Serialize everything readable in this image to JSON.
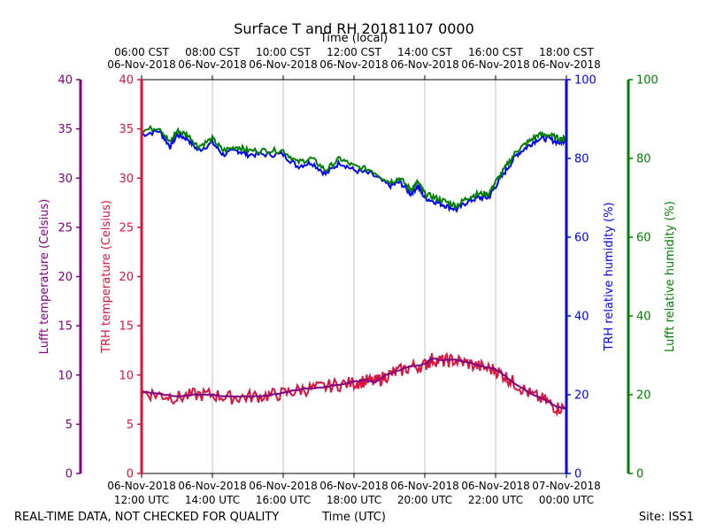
{
  "chart_data": {
    "type": "line",
    "title": "Surface T and RH 20181107 0000",
    "xlabel": "Time (UTC)",
    "xlabel_top": "Time (local)",
    "xlim_hours_utc": [
      12,
      24
    ],
    "x_ticks_bottom": [
      {
        "hour": 12,
        "date": "06-Nov-2018",
        "time": "12:00 UTC"
      },
      {
        "hour": 14,
        "date": "06-Nov-2018",
        "time": "14:00 UTC"
      },
      {
        "hour": 16,
        "date": "06-Nov-2018",
        "time": "16:00 UTC"
      },
      {
        "hour": 18,
        "date": "06-Nov-2018",
        "time": "18:00 UTC"
      },
      {
        "hour": 20,
        "date": "06-Nov-2018",
        "time": "20:00 UTC"
      },
      {
        "hour": 22,
        "date": "06-Nov-2018",
        "time": "22:00 UTC"
      },
      {
        "hour": 24,
        "date": "07-Nov-2018",
        "time": "00:00 UTC"
      }
    ],
    "x_ticks_top": [
      {
        "hour": 12,
        "time": "06:00 CST",
        "date": "06-Nov-2018"
      },
      {
        "hour": 14,
        "time": "08:00 CST",
        "date": "06-Nov-2018"
      },
      {
        "hour": 16,
        "time": "10:00 CST",
        "date": "06-Nov-2018"
      },
      {
        "hour": 18,
        "time": "12:00 CST",
        "date": "06-Nov-2018"
      },
      {
        "hour": 20,
        "time": "14:00 CST",
        "date": "06-Nov-2018"
      },
      {
        "hour": 22,
        "time": "16:00 CST",
        "date": "06-Nov-2018"
      },
      {
        "hour": 24,
        "time": "18:00 CST",
        "date": "06-Nov-2018"
      }
    ],
    "axes": {
      "lufft_temp": {
        "label": "Lufft temperature (Celsius)",
        "ylim": [
          0,
          40
        ],
        "ticks": [
          "0",
          "5",
          "10",
          "15",
          "20",
          "25",
          "30",
          "35",
          "40"
        ],
        "color": "#800080"
      },
      "trh_temp": {
        "label": "TRH temperature (Celsius)",
        "ylim": [
          0,
          40
        ],
        "ticks": [
          "0",
          "5",
          "10",
          "15",
          "20",
          "25",
          "30",
          "35",
          "40"
        ],
        "color": "#dc143c"
      },
      "trh_rh": {
        "label": "TRH relative humidity (%)",
        "ylim": [
          0,
          100
        ],
        "ticks": [
          "0",
          "20",
          "40",
          "60",
          "80",
          "100"
        ],
        "color": "#0000ff"
      },
      "lufft_rh": {
        "label": "Lufft relative humidity (%)",
        "ylim": [
          0,
          100
        ],
        "ticks": [
          "0",
          "20",
          "40",
          "60",
          "80",
          "100"
        ],
        "color": "#008000"
      }
    },
    "grid": "vertical",
    "series": [
      {
        "name": "TRH relative humidity",
        "axis": "trh_rh",
        "color": "#0000ff",
        "x": [
          12.0,
          12.5,
          12.8,
          13.0,
          13.3,
          13.6,
          14.0,
          14.3,
          14.7,
          15.0,
          15.5,
          16.0,
          16.4,
          16.8,
          17.2,
          17.6,
          18.0,
          18.5,
          19.0,
          19.3,
          19.6,
          19.8,
          20.0,
          20.3,
          20.6,
          20.9,
          21.2,
          21.5,
          21.8,
          22.0,
          22.3,
          22.6,
          22.9,
          23.2,
          23.5,
          23.8,
          24.0
        ],
        "values": [
          86,
          87,
          83,
          86,
          85,
          82,
          84,
          81,
          82,
          81,
          81,
          81,
          78,
          79,
          76,
          79,
          77,
          76,
          73,
          74,
          71,
          73,
          70,
          69,
          68,
          67,
          69,
          70,
          70,
          73,
          77,
          81,
          83,
          85,
          85,
          84,
          85
        ]
      },
      {
        "name": "Lufft relative humidity",
        "axis": "lufft_rh",
        "color": "#008000",
        "x": [
          12.0,
          12.5,
          12.8,
          13.0,
          13.3,
          13.6,
          14.0,
          14.3,
          14.7,
          15.0,
          15.5,
          16.0,
          16.4,
          16.8,
          17.2,
          17.6,
          18.0,
          18.5,
          19.0,
          19.3,
          19.6,
          19.8,
          20.0,
          20.3,
          20.6,
          20.9,
          21.2,
          21.5,
          21.8,
          22.0,
          22.3,
          22.6,
          22.9,
          23.2,
          23.5,
          23.8,
          24.0
        ],
        "values": [
          87,
          88,
          84,
          87,
          86,
          83,
          85,
          82,
          83,
          82,
          82,
          82,
          79,
          80,
          77,
          80,
          78,
          77,
          74,
          75,
          72,
          74,
          71,
          70,
          69,
          68,
          70,
          71,
          71,
          74,
          78,
          82,
          84,
          86,
          86,
          85,
          85
        ]
      },
      {
        "name": "TRH temperature",
        "axis": "trh_temp",
        "color": "#dc143c",
        "x": [
          12.0,
          12.5,
          13.0,
          13.5,
          14.0,
          14.5,
          15.0,
          15.5,
          16.0,
          16.5,
          17.0,
          17.5,
          18.0,
          18.3,
          18.6,
          18.9,
          19.2,
          19.6,
          20.0,
          20.2,
          20.5,
          20.8,
          21.2,
          21.6,
          22.0,
          22.3,
          22.6,
          23.0,
          23.4,
          23.7,
          24.0
        ],
        "values": [
          8.2,
          8.0,
          7.7,
          8.0,
          8.0,
          7.7,
          7.8,
          7.9,
          8.1,
          8.5,
          8.7,
          9.0,
          9.2,
          9.4,
          9.3,
          9.9,
          10.3,
          10.8,
          11.0,
          11.6,
          11.4,
          11.5,
          11.2,
          10.8,
          10.5,
          9.8,
          9.0,
          8.0,
          7.4,
          6.7,
          6.6
        ]
      },
      {
        "name": "Lufft temperature",
        "axis": "lufft_temp",
        "color": "#800080",
        "x": [
          12.0,
          12.5,
          13.0,
          13.5,
          14.0,
          14.5,
          15.0,
          15.5,
          16.0,
          16.5,
          17.0,
          17.5,
          18.0,
          18.3,
          18.6,
          18.9,
          19.2,
          19.6,
          20.0,
          20.2,
          20.5,
          20.8,
          21.2,
          21.6,
          22.0,
          22.3,
          22.6,
          23.0,
          23.4,
          23.7,
          24.0
        ],
        "values": [
          8.3,
          8.1,
          7.8,
          8.0,
          8.0,
          7.8,
          7.8,
          7.9,
          8.2,
          8.6,
          8.7,
          9.0,
          9.3,
          9.5,
          9.3,
          10.0,
          10.4,
          10.9,
          11.1,
          11.7,
          11.5,
          11.6,
          11.3,
          10.9,
          10.6,
          9.8,
          9.0,
          8.1,
          7.5,
          6.8,
          6.6
        ]
      }
    ]
  },
  "footer": {
    "disclaimer": "REAL-TIME DATA, NOT CHECKED FOR QUALITY",
    "site": "Site: ISS1"
  }
}
